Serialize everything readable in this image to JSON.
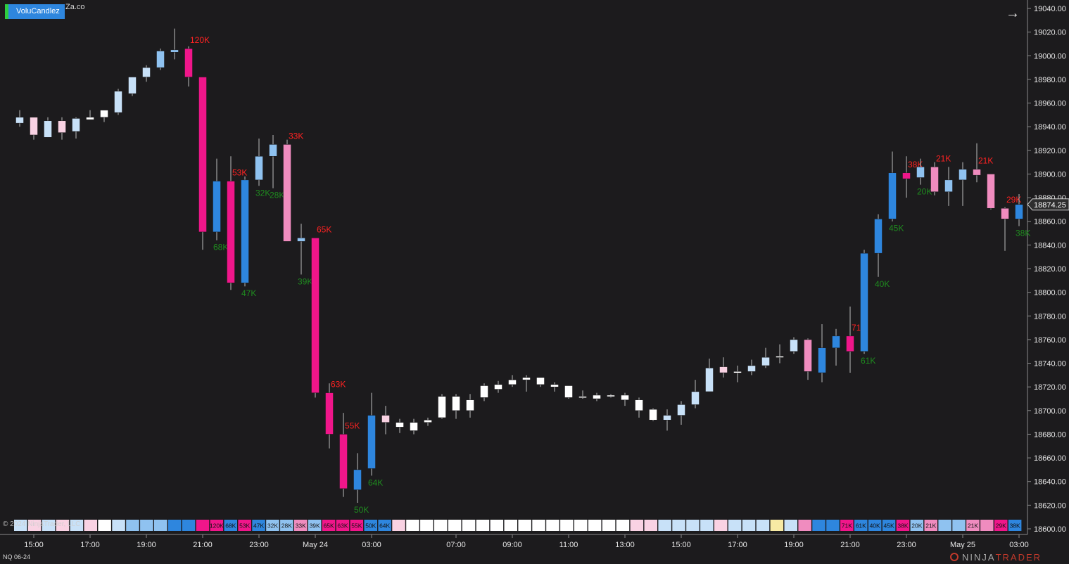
{
  "header": {
    "indicator_label": "VoluCandlez",
    "indicator_suffix": "Za.co",
    "instrument": "NQ 06-24",
    "copyright": "© 2024 NinjaTrader, LLC",
    "brand_a": "NINJA",
    "brand_b": "TRADER",
    "icons": {
      "nav": "arrow-right-icon",
      "logo": "ninjatrader-logo-icon"
    }
  },
  "colors": {
    "background": "#1c1b1d",
    "axis_text": "#e6e6e6",
    "neutral": "#ffffff",
    "light_blue": "#c8e1f8",
    "mid_blue": "#8fc2f0",
    "strong_blue": "#2e86de",
    "light_pink": "#f9d2e3",
    "mid_pink": "#f08cbf",
    "strong_pink": "#f0168a",
    "yellow": "#f7eaa4",
    "label_up": "#1f8b1f",
    "label_down": "#ff2222",
    "price_marker": "#2e2e2e"
  },
  "chart_data": {
    "type": "candlestick",
    "yrange": [
      18600,
      19040
    ],
    "y_ticks": [
      "19040.00",
      "19020.00",
      "19000.00",
      "18980.00",
      "18960.00",
      "18940.00",
      "18920.00",
      "18900.00",
      "18880.00",
      "18860.00",
      "18840.00",
      "18820.00",
      "18800.00",
      "18780.00",
      "18760.00",
      "18740.00",
      "18720.00",
      "18700.00",
      "18680.00",
      "18660.00",
      "18640.00",
      "18620.00",
      "18600.00"
    ],
    "x_ticks": [
      {
        "label": "15:00",
        "i": 1
      },
      {
        "label": "17:00",
        "i": 5
      },
      {
        "label": "19:00",
        "i": 9
      },
      {
        "label": "21:00",
        "i": 13
      },
      {
        "label": "23:00",
        "i": 17
      },
      {
        "label": "May 24",
        "i": 21
      },
      {
        "label": "03:00",
        "i": 25
      },
      {
        "label": "07:00",
        "i": 31
      },
      {
        "label": "09:00",
        "i": 35
      },
      {
        "label": "11:00",
        "i": 39
      },
      {
        "label": "13:00",
        "i": 43
      },
      {
        "label": "15:00",
        "i": 47
      },
      {
        "label": "17:00",
        "i": 51
      },
      {
        "label": "19:00",
        "i": 55
      },
      {
        "label": "21:00",
        "i": 59
      },
      {
        "label": "23:00",
        "i": 63
      },
      {
        "label": "May 25",
        "i": 67
      },
      {
        "label": "03:00",
        "i": 71
      }
    ],
    "last_price": "18874.25",
    "last_price_value": 18874.25,
    "candles": [
      {
        "o": 18943,
        "h": 18954,
        "l": 18940,
        "c": 18948,
        "color": "light_blue"
      },
      {
        "o": 18948,
        "h": 18948,
        "l": 18929,
        "c": 18933,
        "color": "light_pink"
      },
      {
        "o": 18931,
        "h": 18948,
        "l": 18931,
        "c": 18945,
        "color": "light_blue"
      },
      {
        "o": 18945,
        "h": 18948,
        "l": 18929,
        "c": 18935,
        "color": "light_pink"
      },
      {
        "o": 18936,
        "h": 18948,
        "l": 18930,
        "c": 18947,
        "color": "light_blue"
      },
      {
        "o": 18946,
        "h": 18954,
        "l": 18946,
        "c": 18948,
        "color": "neutral"
      },
      {
        "o": 18948,
        "h": 18951,
        "l": 18944,
        "c": 18954,
        "color": "neutral"
      },
      {
        "o": 18952,
        "h": 18972,
        "l": 18950,
        "c": 18970,
        "color": "light_blue"
      },
      {
        "o": 18968,
        "h": 18982,
        "l": 18966,
        "c": 18982,
        "color": "light_blue"
      },
      {
        "o": 18982,
        "h": 18992,
        "l": 18978,
        "c": 18990,
        "color": "light_blue"
      },
      {
        "o": 18990,
        "h": 19006,
        "l": 18988,
        "c": 19004,
        "color": "mid_blue"
      },
      {
        "o": 19003,
        "h": 19023,
        "l": 18997,
        "c": 19005,
        "color": "mid_blue"
      },
      {
        "o": 19006,
        "h": 19008,
        "l": 18974,
        "c": 18982,
        "color": "strong_pink",
        "label": "120K",
        "label_pos": "above"
      },
      {
        "o": 18982,
        "h": 18982,
        "l": 18836,
        "c": 18851,
        "color": "strong_pink"
      },
      {
        "o": 18851,
        "h": 18913,
        "l": 18844,
        "c": 18894,
        "color": "strong_blue",
        "label": "68K",
        "label_pos": "below"
      },
      {
        "o": 18894,
        "h": 18915,
        "l": 18802,
        "c": 18808,
        "color": "strong_pink",
        "label": "53K",
        "label_pos": "above"
      },
      {
        "o": 18808,
        "h": 18898,
        "l": 18805,
        "c": 18895,
        "color": "strong_blue",
        "label": "47K",
        "label_pos": "below"
      },
      {
        "o": 18895,
        "h": 18930,
        "l": 18890,
        "c": 18915,
        "color": "mid_blue",
        "label": "32K",
        "label_pos": "below"
      },
      {
        "o": 18915,
        "h": 18933,
        "l": 18888,
        "c": 18925,
        "color": "mid_blue",
        "label": "28K",
        "label_pos": "below"
      },
      {
        "o": 18925,
        "h": 18929,
        "l": 18843,
        "c": 18843,
        "color": "mid_pink",
        "label": "33K",
        "label_pos": "above"
      },
      {
        "o": 18846,
        "h": 18858,
        "l": 18815,
        "c": 18843,
        "color": "mid_blue",
        "label": "39K",
        "label_pos": "below"
      },
      {
        "o": 18846,
        "h": 18846,
        "l": 18711,
        "c": 18715,
        "color": "strong_pink",
        "label": "65K",
        "label_pos": "above"
      },
      {
        "o": 18715,
        "h": 18723,
        "l": 18668,
        "c": 18680,
        "color": "strong_pink",
        "label": "63K",
        "label_pos": "above"
      },
      {
        "o": 18680,
        "h": 18698,
        "l": 18627,
        "c": 18634,
        "color": "strong_pink",
        "label": "55K",
        "label_pos": "above"
      },
      {
        "o": 18633,
        "h": 18664,
        "l": 18622,
        "c": 18650,
        "color": "strong_blue",
        "label": "50K",
        "label_pos": "below"
      },
      {
        "o": 18651,
        "h": 18715,
        "l": 18645,
        "c": 18696,
        "color": "strong_blue",
        "label": "64K",
        "label_pos": "below"
      },
      {
        "o": 18696,
        "h": 18704,
        "l": 18680,
        "c": 18690,
        "color": "light_pink"
      },
      {
        "o": 18686,
        "h": 18693,
        "l": 18681,
        "c": 18690,
        "color": "neutral"
      },
      {
        "o": 18683,
        "h": 18693,
        "l": 18680,
        "c": 18690,
        "color": "neutral"
      },
      {
        "o": 18690,
        "h": 18694,
        "l": 18687,
        "c": 18692,
        "color": "neutral"
      },
      {
        "o": 18694,
        "h": 18714,
        "l": 18693,
        "c": 18712,
        "color": "neutral"
      },
      {
        "o": 18700,
        "h": 18714,
        "l": 18693,
        "c": 18712,
        "color": "neutral"
      },
      {
        "o": 18700,
        "h": 18714,
        "l": 18694,
        "c": 18709,
        "color": "neutral"
      },
      {
        "o": 18711,
        "h": 18723,
        "l": 18708,
        "c": 18721,
        "color": "neutral"
      },
      {
        "o": 18718,
        "h": 18725,
        "l": 18715,
        "c": 18722,
        "color": "neutral"
      },
      {
        "o": 18722,
        "h": 18730,
        "l": 18720,
        "c": 18726,
        "color": "neutral"
      },
      {
        "o": 18726,
        "h": 18730,
        "l": 18716,
        "c": 18728,
        "color": "neutral"
      },
      {
        "o": 18728,
        "h": 18728,
        "l": 18720,
        "c": 18722,
        "color": "neutral"
      },
      {
        "o": 18720,
        "h": 18724,
        "l": 18716,
        "c": 18722,
        "color": "neutral"
      },
      {
        "o": 18721,
        "h": 18721,
        "l": 18710,
        "c": 18711,
        "color": "neutral"
      },
      {
        "o": 18712,
        "h": 18717,
        "l": 18710,
        "c": 18711,
        "color": "neutral"
      },
      {
        "o": 18710,
        "h": 18715,
        "l": 18708,
        "c": 18713,
        "color": "neutral"
      },
      {
        "o": 18713,
        "h": 18714,
        "l": 18711,
        "c": 18713,
        "color": "neutral"
      },
      {
        "o": 18713,
        "h": 18715,
        "l": 18704,
        "c": 18709,
        "color": "neutral"
      },
      {
        "o": 18709,
        "h": 18711,
        "l": 18694,
        "c": 18700,
        "color": "neutral"
      },
      {
        "o": 18701,
        "h": 18702,
        "l": 18691,
        "c": 18692,
        "color": "neutral"
      },
      {
        "o": 18692,
        "h": 18701,
        "l": 18683,
        "c": 18696,
        "color": "light_blue"
      },
      {
        "o": 18696,
        "h": 18708,
        "l": 18688,
        "c": 18705,
        "color": "light_blue"
      },
      {
        "o": 18705,
        "h": 18726,
        "l": 18702,
        "c": 18716,
        "color": "light_blue"
      },
      {
        "o": 18716,
        "h": 18744,
        "l": 18716,
        "c": 18736,
        "color": "light_blue"
      },
      {
        "o": 18737,
        "h": 18745,
        "l": 18728,
        "c": 18732,
        "color": "light_pink"
      },
      {
        "o": 18732,
        "h": 18738,
        "l": 18724,
        "c": 18733,
        "color": "neutral"
      },
      {
        "o": 18733,
        "h": 18743,
        "l": 18730,
        "c": 18738,
        "color": "light_blue"
      },
      {
        "o": 18738,
        "h": 18753,
        "l": 18736,
        "c": 18745,
        "color": "light_blue"
      },
      {
        "o": 18746,
        "h": 18756,
        "l": 18740,
        "c": 18746,
        "color": "neutral"
      },
      {
        "o": 18750,
        "h": 18762,
        "l": 18748,
        "c": 18760,
        "color": "light_blue"
      },
      {
        "o": 18760,
        "h": 18761,
        "l": 18726,
        "c": 18733,
        "color": "mid_pink"
      },
      {
        "o": 18732,
        "h": 18773,
        "l": 18724,
        "c": 18753,
        "color": "strong_blue"
      },
      {
        "o": 18753,
        "h": 18769,
        "l": 18738,
        "c": 18763,
        "color": "strong_blue"
      },
      {
        "o": 18763,
        "h": 18788,
        "l": 18732,
        "c": 18750,
        "color": "strong_pink",
        "label": "71K",
        "label_pos": "above"
      },
      {
        "o": 18750,
        "h": 18836,
        "l": 18748,
        "c": 18833,
        "color": "strong_blue",
        "label": "61K",
        "label_pos": "below"
      },
      {
        "o": 18833,
        "h": 18866,
        "l": 18813,
        "c": 18862,
        "color": "strong_blue",
        "label": "40K",
        "label_pos": "below"
      },
      {
        "o": 18862,
        "h": 18919,
        "l": 18860,
        "c": 18901,
        "color": "strong_blue",
        "label": "45K",
        "label_pos": "below"
      },
      {
        "o": 18901,
        "h": 18915,
        "l": 18880,
        "c": 18896,
        "color": "strong_pink",
        "label": "38K",
        "label_pos": "above"
      },
      {
        "o": 18897,
        "h": 18913,
        "l": 18891,
        "c": 18906,
        "color": "mid_blue",
        "label": "20K",
        "label_pos": "below"
      },
      {
        "o": 18906,
        "h": 18910,
        "l": 18882,
        "c": 18885,
        "color": "mid_pink",
        "label": "21K",
        "label_pos": "above"
      },
      {
        "o": 18885,
        "h": 18906,
        "l": 18873,
        "c": 18895,
        "color": "mid_blue"
      },
      {
        "o": 18895,
        "h": 18910,
        "l": 18873,
        "c": 18904,
        "color": "mid_blue"
      },
      {
        "o": 18904,
        "h": 18926,
        "l": 18893,
        "c": 18899,
        "color": "mid_pink",
        "label": "21K",
        "label_pos": "above"
      },
      {
        "o": 18900,
        "h": 18900,
        "l": 18870,
        "c": 18871,
        "color": "mid_pink"
      },
      {
        "o": 18871,
        "h": 18872,
        "l": 18835,
        "c": 18862,
        "color": "mid_pink",
        "label": "29K",
        "label_pos": "above"
      },
      {
        "o": 18862,
        "h": 18883,
        "l": 18856,
        "c": 18874.25,
        "color": "strong_blue",
        "label": "38K",
        "label_pos": "below"
      }
    ],
    "volume_strip": [
      {
        "label": "",
        "color": "light_blue"
      },
      {
        "label": "",
        "color": "light_pink"
      },
      {
        "label": "",
        "color": "light_blue"
      },
      {
        "label": "",
        "color": "light_pink"
      },
      {
        "label": "",
        "color": "light_blue"
      },
      {
        "label": "",
        "color": "light_pink"
      },
      {
        "label": "",
        "color": "neutral"
      },
      {
        "label": "",
        "color": "light_blue"
      },
      {
        "label": "",
        "color": "mid_blue"
      },
      {
        "label": "",
        "color": "mid_blue"
      },
      {
        "label": "",
        "color": "mid_blue"
      },
      {
        "label": "",
        "color": "strong_blue"
      },
      {
        "label": "",
        "color": "strong_blue"
      },
      {
        "label": "",
        "color": "strong_pink"
      },
      {
        "label": "120K",
        "color": "strong_pink"
      },
      {
        "label": "68K",
        "color": "strong_blue"
      },
      {
        "label": "53K",
        "color": "strong_pink"
      },
      {
        "label": "47K",
        "color": "strong_blue"
      },
      {
        "label": "32K",
        "color": "mid_blue"
      },
      {
        "label": "28K",
        "color": "mid_blue"
      },
      {
        "label": "33K",
        "color": "mid_pink"
      },
      {
        "label": "39K",
        "color": "mid_blue"
      },
      {
        "label": "65K",
        "color": "strong_pink"
      },
      {
        "label": "63K",
        "color": "strong_pink"
      },
      {
        "label": "55K",
        "color": "strong_pink"
      },
      {
        "label": "50K",
        "color": "strong_blue"
      },
      {
        "label": "64K",
        "color": "strong_blue"
      },
      {
        "label": "",
        "color": "light_pink"
      },
      {
        "label": "",
        "color": "neutral"
      },
      {
        "label": "",
        "color": "neutral"
      },
      {
        "label": "",
        "color": "neutral"
      },
      {
        "label": "",
        "color": "neutral"
      },
      {
        "label": "",
        "color": "neutral"
      },
      {
        "label": "",
        "color": "neutral"
      },
      {
        "label": "",
        "color": "neutral"
      },
      {
        "label": "",
        "color": "neutral"
      },
      {
        "label": "",
        "color": "neutral"
      },
      {
        "label": "",
        "color": "neutral"
      },
      {
        "label": "",
        "color": "neutral"
      },
      {
        "label": "",
        "color": "neutral"
      },
      {
        "label": "",
        "color": "neutral"
      },
      {
        "label": "",
        "color": "neutral"
      },
      {
        "label": "",
        "color": "neutral"
      },
      {
        "label": "",
        "color": "neutral"
      },
      {
        "label": "",
        "color": "light_pink"
      },
      {
        "label": "",
        "color": "light_pink"
      },
      {
        "label": "",
        "color": "light_blue"
      },
      {
        "label": "",
        "color": "light_blue"
      },
      {
        "label": "",
        "color": "light_blue"
      },
      {
        "label": "",
        "color": "light_blue"
      },
      {
        "label": "",
        "color": "light_pink"
      },
      {
        "label": "",
        "color": "light_blue"
      },
      {
        "label": "",
        "color": "light_blue"
      },
      {
        "label": "",
        "color": "light_blue"
      },
      {
        "label": "",
        "color": "yellow"
      },
      {
        "label": "",
        "color": "light_blue"
      },
      {
        "label": "",
        "color": "mid_pink"
      },
      {
        "label": "",
        "color": "strong_blue"
      },
      {
        "label": "",
        "color": "strong_blue"
      },
      {
        "label": "71K",
        "color": "strong_pink"
      },
      {
        "label": "61K",
        "color": "strong_blue"
      },
      {
        "label": "40K",
        "color": "strong_blue"
      },
      {
        "label": "45K",
        "color": "strong_blue"
      },
      {
        "label": "38K",
        "color": "strong_pink"
      },
      {
        "label": "20K",
        "color": "mid_blue"
      },
      {
        "label": "21K",
        "color": "mid_pink"
      },
      {
        "label": "",
        "color": "mid_blue"
      },
      {
        "label": "",
        "color": "mid_blue"
      },
      {
        "label": "21K",
        "color": "mid_pink"
      },
      {
        "label": "",
        "color": "mid_pink"
      },
      {
        "label": "29K",
        "color": "strong_pink"
      },
      {
        "label": "38K",
        "color": "strong_blue"
      }
    ]
  }
}
